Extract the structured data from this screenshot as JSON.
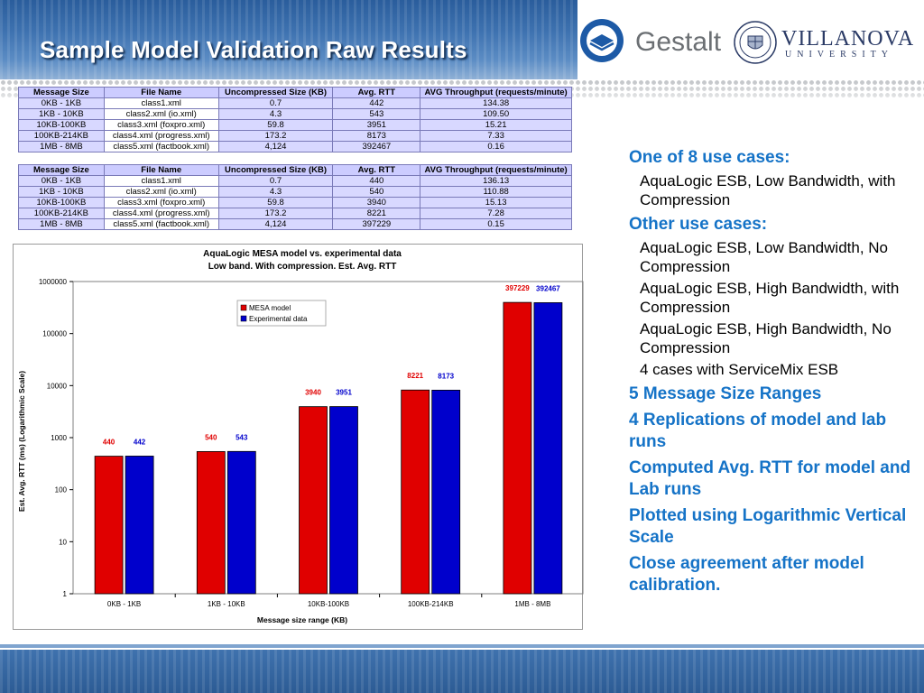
{
  "slide": {
    "title": "Sample Model Validation Raw Results",
    "logos": {
      "gestalt": "Gestalt",
      "villanova": "VILLANOVA",
      "villanova_sub": "UNIVERSITY"
    }
  },
  "tables": [
    {
      "headers": [
        "Message Size",
        "File Name",
        "Uncompressed Size (KB)",
        "Avg. RTT",
        "AVG Throughput (requests/minute)"
      ],
      "rows": [
        [
          "0KB - 1KB",
          "class1.xml",
          "0.7",
          "442",
          "134.38"
        ],
        [
          "1KB - 10KB",
          "class2.xml (io.xml)",
          "4.3",
          "543",
          "109.50"
        ],
        [
          "10KB-100KB",
          "class3.xml (foxpro.xml)",
          "59.8",
          "3951",
          "15.21"
        ],
        [
          "100KB-214KB",
          "class4.xml (progress.xml)",
          "173.2",
          "8173",
          "7.33"
        ],
        [
          "1MB - 8MB",
          "class5.xml (factbook.xml)",
          "4,124",
          "392467",
          "0.16"
        ]
      ]
    },
    {
      "headers": [
        "Message Size",
        "File Name",
        "Uncompressed Size (KB)",
        "Avg. RTT",
        "AVG Throughput (requests/minute)"
      ],
      "rows": [
        [
          "0KB - 1KB",
          "class1.xml",
          "0.7",
          "440",
          "136.13"
        ],
        [
          "1KB - 10KB",
          "class2.xml (io.xml)",
          "4.3",
          "540",
          "110.88"
        ],
        [
          "10KB-100KB",
          "class3.xml (foxpro.xml)",
          "59.8",
          "3940",
          "15.13"
        ],
        [
          "100KB-214KB",
          "class4.xml (progress.xml)",
          "173.2",
          "8221",
          "7.28"
        ],
        [
          "1MB - 8MB",
          "class5.xml (factbook.xml)",
          "4,124",
          "397229",
          "0.15"
        ]
      ]
    }
  ],
  "chart_data": {
    "type": "bar",
    "title": "AquaLogic MESA model vs. experimental data",
    "subtitle": "Low band. With compression. Est. Avg. RTT",
    "xlabel": "Message size range (KB)",
    "ylabel": "Est. Avg. RTT (ms) (Logarithmic Scale)",
    "y_scale": "log",
    "ylim": [
      1,
      1000000
    ],
    "y_ticks": [
      "1",
      "10",
      "100",
      "1000",
      "10000",
      "100000",
      "1000000"
    ],
    "categories": [
      "0KB - 1KB",
      "1KB - 10KB",
      "10KB-100KB",
      "100KB-214KB",
      "1MB - 8MB"
    ],
    "series": [
      {
        "name": "MESA model",
        "color": "#e00000",
        "values": [
          440,
          540,
          3940,
          8221,
          397229
        ]
      },
      {
        "name": "Experimental data",
        "color": "#0000cc",
        "values": [
          442,
          543,
          3951,
          8173,
          392467
        ]
      }
    ],
    "legend": "top-center",
    "grid": false
  },
  "bullets": [
    {
      "level": 1,
      "text": "One of 8 use cases:"
    },
    {
      "level": 2,
      "text": "AquaLogic ESB, Low Bandwidth, with Compression"
    },
    {
      "level": 1,
      "text": "Other use cases:"
    },
    {
      "level": 2,
      "text": "AquaLogic ESB, Low Bandwidth, No Compression"
    },
    {
      "level": 2,
      "text": "AquaLogic ESB, High Bandwidth, with Compression"
    },
    {
      "level": 2,
      "text": "AquaLogic ESB, High Bandwidth, No Compression"
    },
    {
      "level": 2,
      "text": "4 cases with ServiceMix ESB"
    },
    {
      "level": 1,
      "text": "5 Message Size Ranges"
    },
    {
      "level": 1,
      "text": "4 Replications of model and lab runs"
    },
    {
      "level": 1,
      "text": "Computed Avg. RTT for model and Lab runs"
    },
    {
      "level": 1,
      "text": "Plotted using Logarithmic Vertical Scale"
    },
    {
      "level": 1,
      "text": "Close agreement after model calibration."
    }
  ],
  "colors": {
    "accent": "#1573c7",
    "header_blue": "#3e72b0",
    "table_header": "#ccccff",
    "table_cell": "#d8d8ff"
  }
}
